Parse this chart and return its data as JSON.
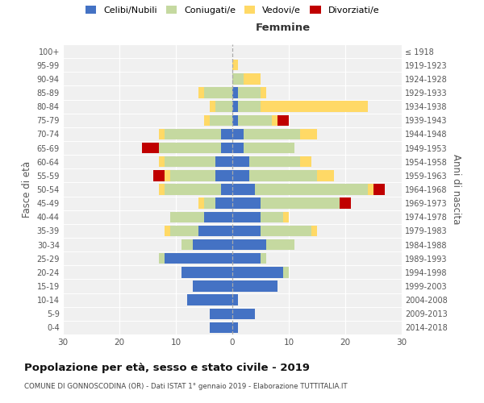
{
  "age_groups": [
    "0-4",
    "5-9",
    "10-14",
    "15-19",
    "20-24",
    "25-29",
    "30-34",
    "35-39",
    "40-44",
    "45-49",
    "50-54",
    "55-59",
    "60-64",
    "65-69",
    "70-74",
    "75-79",
    "80-84",
    "85-89",
    "90-94",
    "95-99",
    "100+"
  ],
  "birth_years": [
    "2014-2018",
    "2009-2013",
    "2004-2008",
    "1999-2003",
    "1994-1998",
    "1989-1993",
    "1984-1988",
    "1979-1983",
    "1974-1978",
    "1969-1973",
    "1964-1968",
    "1959-1963",
    "1954-1958",
    "1949-1953",
    "1944-1948",
    "1939-1943",
    "1934-1938",
    "1929-1933",
    "1924-1928",
    "1919-1923",
    "≤ 1918"
  ],
  "male": {
    "celibi": [
      4,
      4,
      8,
      7,
      9,
      12,
      7,
      6,
      5,
      3,
      2,
      3,
      3,
      2,
      2,
      0,
      0,
      0,
      0,
      0,
      0
    ],
    "coniugati": [
      0,
      0,
      0,
      0,
      0,
      1,
      2,
      5,
      6,
      2,
      10,
      8,
      9,
      11,
      10,
      4,
      3,
      5,
      0,
      0,
      0
    ],
    "vedovi": [
      0,
      0,
      0,
      0,
      0,
      0,
      0,
      1,
      0,
      1,
      1,
      1,
      1,
      0,
      1,
      1,
      1,
      1,
      0,
      0,
      0
    ],
    "divorziati": [
      0,
      0,
      0,
      0,
      0,
      0,
      0,
      0,
      0,
      0,
      0,
      2,
      0,
      3,
      0,
      0,
      0,
      0,
      0,
      0,
      0
    ]
  },
  "female": {
    "nubili": [
      1,
      4,
      1,
      8,
      9,
      5,
      6,
      5,
      5,
      5,
      4,
      3,
      3,
      2,
      2,
      1,
      1,
      1,
      0,
      0,
      0
    ],
    "coniugate": [
      0,
      0,
      0,
      0,
      1,
      1,
      5,
      9,
      4,
      14,
      20,
      12,
      9,
      9,
      10,
      6,
      4,
      4,
      2,
      0,
      0
    ],
    "vedove": [
      0,
      0,
      0,
      0,
      0,
      0,
      0,
      1,
      1,
      0,
      1,
      3,
      2,
      0,
      3,
      1,
      19,
      1,
      3,
      1,
      0
    ],
    "divorziate": [
      0,
      0,
      0,
      0,
      0,
      0,
      0,
      0,
      0,
      2,
      2,
      0,
      0,
      0,
      0,
      2,
      0,
      0,
      0,
      0,
      0
    ]
  },
  "colors": {
    "celibi": "#4472C4",
    "coniugati": "#c5d9a0",
    "vedovi": "#FFD966",
    "divorziati": "#C00000"
  },
  "xlim": 30,
  "title": "Popolazione per età, sesso e stato civile - 2019",
  "subtitle": "COMUNE DI GONNOSCODINA (OR) - Dati ISTAT 1° gennaio 2019 - Elaborazione TUTTITALIA.IT",
  "ylabel": "Fasce di età",
  "ylabel_right": "Anni di nascita",
  "bg_color": "#f0f0f0",
  "legend_labels": [
    "Celibi/Nubili",
    "Coniugati/e",
    "Vedovi/e",
    "Divorziati/e"
  ]
}
